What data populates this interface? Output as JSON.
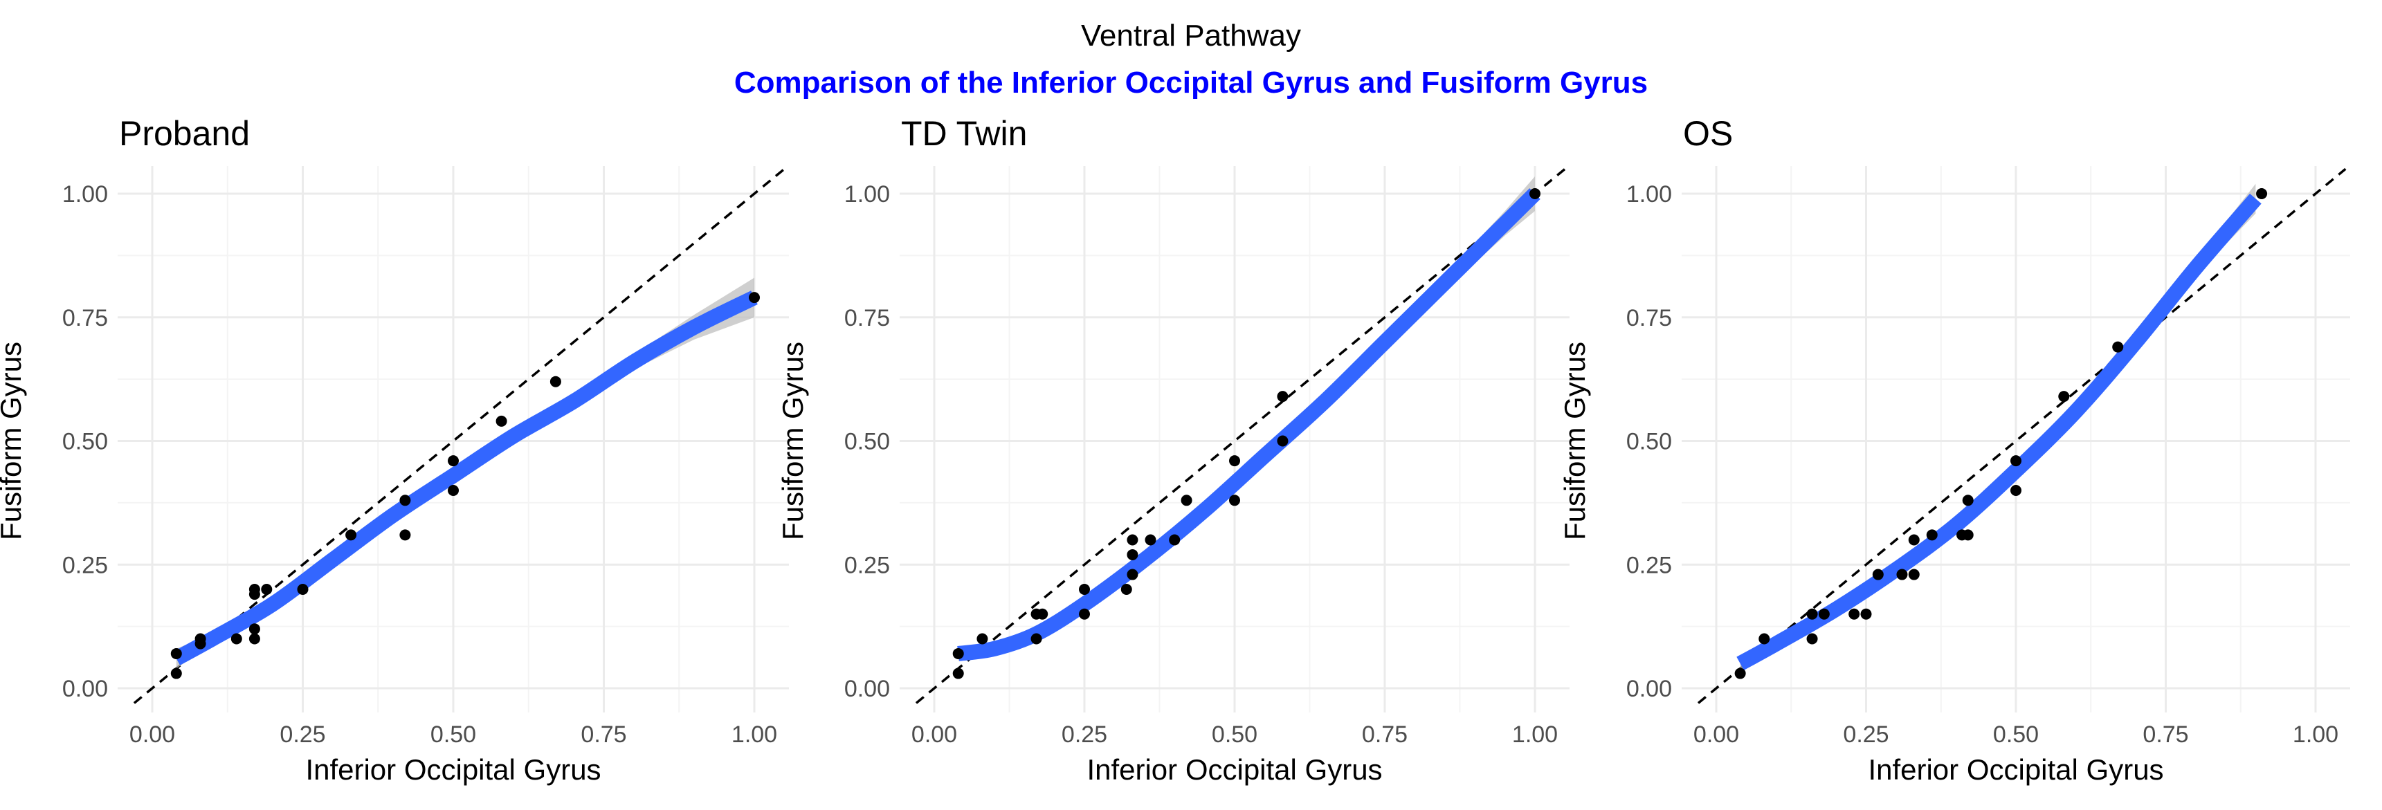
{
  "title": "Ventral Pathway",
  "subtitle": "Comparison of the Inferior Occipital Gyrus and Fusiform Gyrus",
  "colors": {
    "subtitle": "#0000ff",
    "fit_line": "#3366ff",
    "ribbon": "#bfbfbf",
    "points": "#000000",
    "grid_major": "#ebebeb",
    "grid_minor": "#f4f4f4",
    "reference_line": "#000000"
  },
  "chart_data": [
    {
      "type": "scatter",
      "title": "Proband",
      "xlabel": "Inferior Occipital Gyrus",
      "ylabel": "Fusiform Gyrus",
      "xlim": [
        0,
        1
      ],
      "ylim": [
        0,
        1
      ],
      "xticks": [
        "0.00",
        "0.25",
        "0.50",
        "0.75",
        "1.00"
      ],
      "yticks": [
        "0.00",
        "0.25",
        "0.50",
        "0.75",
        "1.00"
      ],
      "grid": true,
      "reference_line": "y = x (dashed)",
      "points": [
        [
          0.04,
          0.03
        ],
        [
          0.04,
          0.07
        ],
        [
          0.08,
          0.09
        ],
        [
          0.08,
          0.1
        ],
        [
          0.14,
          0.1
        ],
        [
          0.17,
          0.1
        ],
        [
          0.17,
          0.12
        ],
        [
          0.17,
          0.19
        ],
        [
          0.17,
          0.2
        ],
        [
          0.19,
          0.2
        ],
        [
          0.25,
          0.2
        ],
        [
          0.33,
          0.31
        ],
        [
          0.42,
          0.31
        ],
        [
          0.42,
          0.38
        ],
        [
          0.5,
          0.4
        ],
        [
          0.5,
          0.46
        ],
        [
          0.58,
          0.54
        ],
        [
          0.67,
          0.62
        ],
        [
          1.0,
          0.79
        ]
      ],
      "fit": [
        [
          0.04,
          0.06
        ],
        [
          0.1,
          0.1
        ],
        [
          0.2,
          0.17
        ],
        [
          0.3,
          0.26
        ],
        [
          0.4,
          0.35
        ],
        [
          0.5,
          0.43
        ],
        [
          0.6,
          0.51
        ],
        [
          0.7,
          0.58
        ],
        [
          0.8,
          0.66
        ],
        [
          0.9,
          0.73
        ],
        [
          1.0,
          0.79
        ]
      ],
      "fit_se": [
        0.02,
        0.01,
        0.01,
        0.01,
        0.01,
        0.01,
        0.01,
        0.01,
        0.015,
        0.025,
        0.04
      ]
    },
    {
      "type": "scatter",
      "title": "TD Twin",
      "xlabel": "Inferior Occipital Gyrus",
      "ylabel": "Fusiform Gyrus",
      "xlim": [
        0,
        1
      ],
      "ylim": [
        0,
        1
      ],
      "xticks": [
        "0.00",
        "0.25",
        "0.50",
        "0.75",
        "1.00"
      ],
      "yticks": [
        "0.00",
        "0.25",
        "0.50",
        "0.75",
        "1.00"
      ],
      "grid": true,
      "reference_line": "y = x (dashed)",
      "points": [
        [
          0.04,
          0.03
        ],
        [
          0.04,
          0.07
        ],
        [
          0.08,
          0.1
        ],
        [
          0.17,
          0.1
        ],
        [
          0.17,
          0.15
        ],
        [
          0.18,
          0.15
        ],
        [
          0.25,
          0.15
        ],
        [
          0.25,
          0.2
        ],
        [
          0.32,
          0.2
        ],
        [
          0.33,
          0.23
        ],
        [
          0.33,
          0.27
        ],
        [
          0.33,
          0.3
        ],
        [
          0.36,
          0.3
        ],
        [
          0.4,
          0.3
        ],
        [
          0.42,
          0.38
        ],
        [
          0.5,
          0.38
        ],
        [
          0.5,
          0.46
        ],
        [
          0.58,
          0.5
        ],
        [
          0.58,
          0.59
        ],
        [
          1.0,
          1.0
        ]
      ],
      "fit": [
        [
          0.04,
          0.07
        ],
        [
          0.1,
          0.08
        ],
        [
          0.17,
          0.11
        ],
        [
          0.25,
          0.17
        ],
        [
          0.35,
          0.26
        ],
        [
          0.45,
          0.36
        ],
        [
          0.55,
          0.47
        ],
        [
          0.65,
          0.58
        ],
        [
          0.75,
          0.7
        ],
        [
          0.85,
          0.82
        ],
        [
          0.95,
          0.94
        ],
        [
          1.0,
          1.0
        ]
      ],
      "fit_se": [
        0.015,
        0.01,
        0.01,
        0.01,
        0.01,
        0.01,
        0.01,
        0.01,
        0.01,
        0.015,
        0.025,
        0.035
      ]
    },
    {
      "type": "scatter",
      "title": "OS",
      "xlabel": "Inferior Occipital Gyrus",
      "ylabel": "Fusiform Gyrus",
      "xlim": [
        0,
        1
      ],
      "ylim": [
        0,
        1
      ],
      "xticks": [
        "0.00",
        "0.25",
        "0.50",
        "0.75",
        "1.00"
      ],
      "yticks": [
        "0.00",
        "0.25",
        "0.50",
        "0.75",
        "1.00"
      ],
      "grid": true,
      "reference_line": "y = x (dashed)",
      "points": [
        [
          0.04,
          0.03
        ],
        [
          0.08,
          0.1
        ],
        [
          0.16,
          0.1
        ],
        [
          0.16,
          0.15
        ],
        [
          0.18,
          0.15
        ],
        [
          0.23,
          0.15
        ],
        [
          0.25,
          0.15
        ],
        [
          0.27,
          0.23
        ],
        [
          0.31,
          0.23
        ],
        [
          0.33,
          0.23
        ],
        [
          0.33,
          0.3
        ],
        [
          0.36,
          0.31
        ],
        [
          0.41,
          0.31
        ],
        [
          0.42,
          0.31
        ],
        [
          0.42,
          0.38
        ],
        [
          0.5,
          0.4
        ],
        [
          0.5,
          0.46
        ],
        [
          0.58,
          0.59
        ],
        [
          0.67,
          0.69
        ],
        [
          0.91,
          1.0
        ]
      ],
      "fit": [
        [
          0.04,
          0.05
        ],
        [
          0.1,
          0.09
        ],
        [
          0.2,
          0.16
        ],
        [
          0.3,
          0.24
        ],
        [
          0.4,
          0.33
        ],
        [
          0.5,
          0.44
        ],
        [
          0.6,
          0.56
        ],
        [
          0.7,
          0.7
        ],
        [
          0.8,
          0.85
        ],
        [
          0.9,
          0.99
        ]
      ],
      "fit_se": [
        0.015,
        0.01,
        0.01,
        0.01,
        0.01,
        0.01,
        0.01,
        0.01,
        0.015,
        0.03
      ]
    }
  ]
}
